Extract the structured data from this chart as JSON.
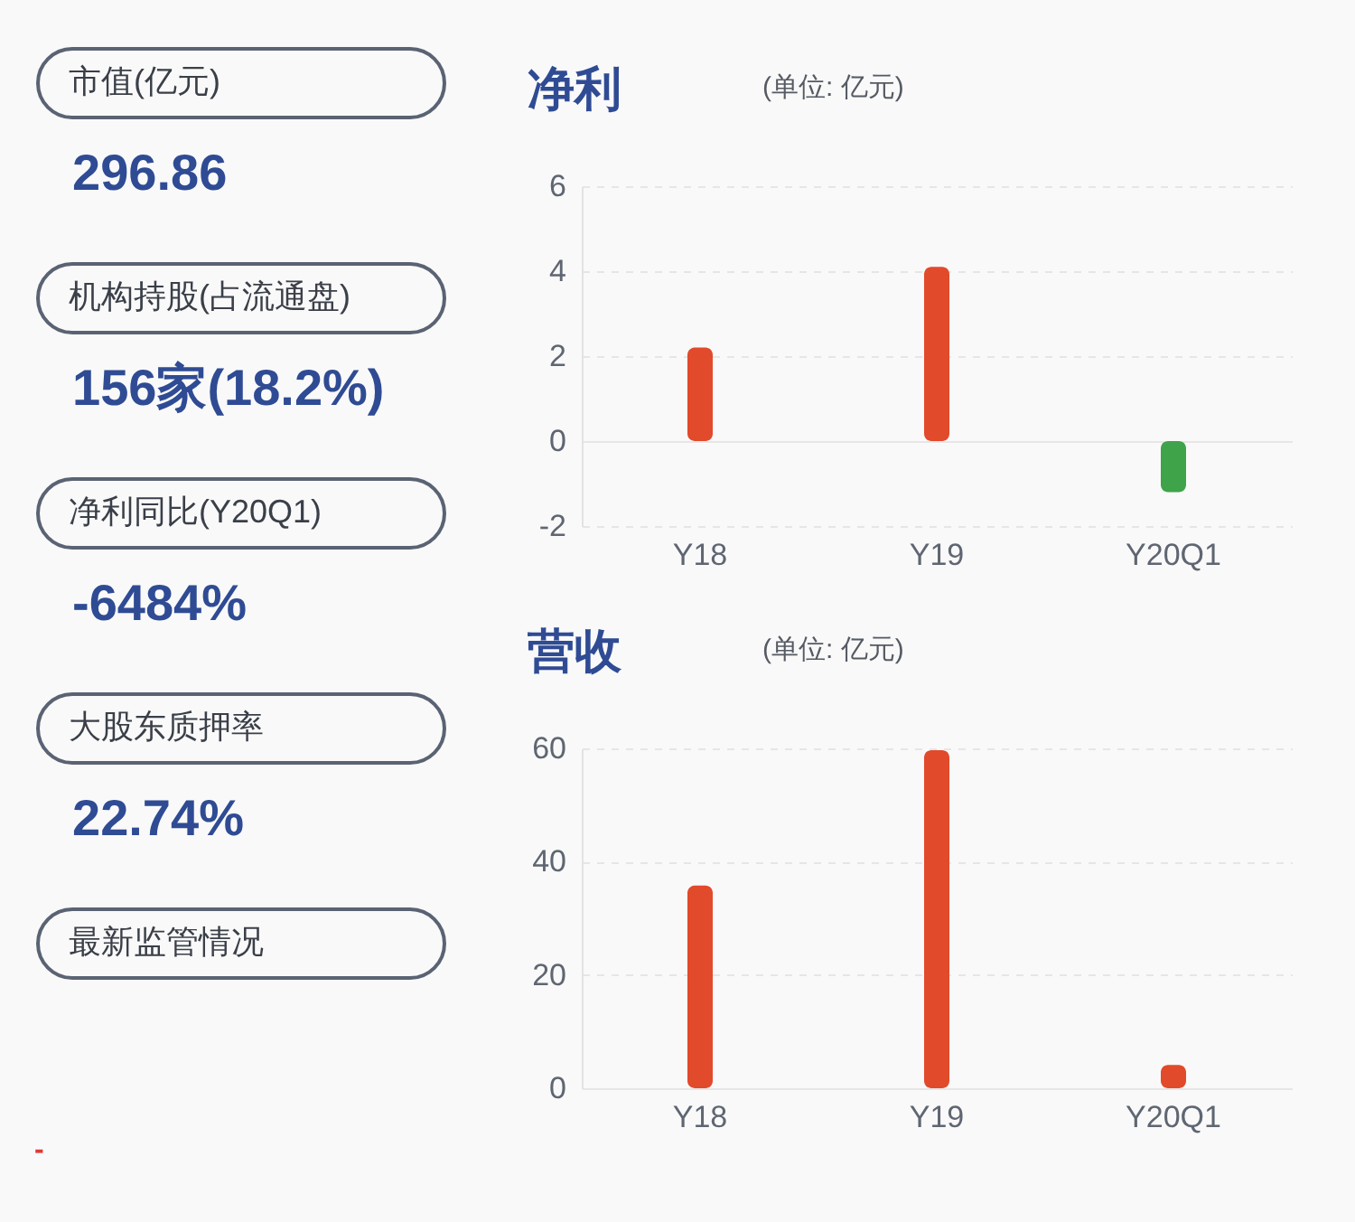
{
  "chart_data": [
    {
      "type": "other",
      "annotations": [
        "市值(亿元)",
        "296.86",
        "机构持股(占流通盘)",
        "156家(18.2%)",
        "净利同比(Y20Q1)",
        "-6484%",
        "大股东质押率",
        "22.74%",
        "最新监管情况",
        "-"
      ]
    },
    {
      "type": "bar",
      "title": "净利",
      "subtitle": "(单位: 亿元)",
      "categories": [
        "Y18",
        "Y19",
        "Y20Q1"
      ],
      "values": [
        2.2,
        4.1,
        -1.2
      ],
      "colors": [
        "#e14a2b",
        "#e14a2b",
        "#3fa34a"
      ],
      "ylim": [
        -2,
        6
      ],
      "yticks": [
        -2,
        0,
        2,
        4,
        6
      ],
      "grid": "y"
    },
    {
      "type": "bar",
      "title": "营收",
      "subtitle": "(单位: 亿元)",
      "categories": [
        "Y18",
        "Y19",
        "Y20Q1"
      ],
      "values": [
        35.8,
        59.7,
        4.1
      ],
      "colors": [
        "#e14a2b",
        "#e14a2b",
        "#e14a2b"
      ],
      "ylim": [
        0,
        60
      ],
      "yticks": [
        0,
        20,
        40,
        60
      ],
      "grid": "y"
    }
  ]
}
